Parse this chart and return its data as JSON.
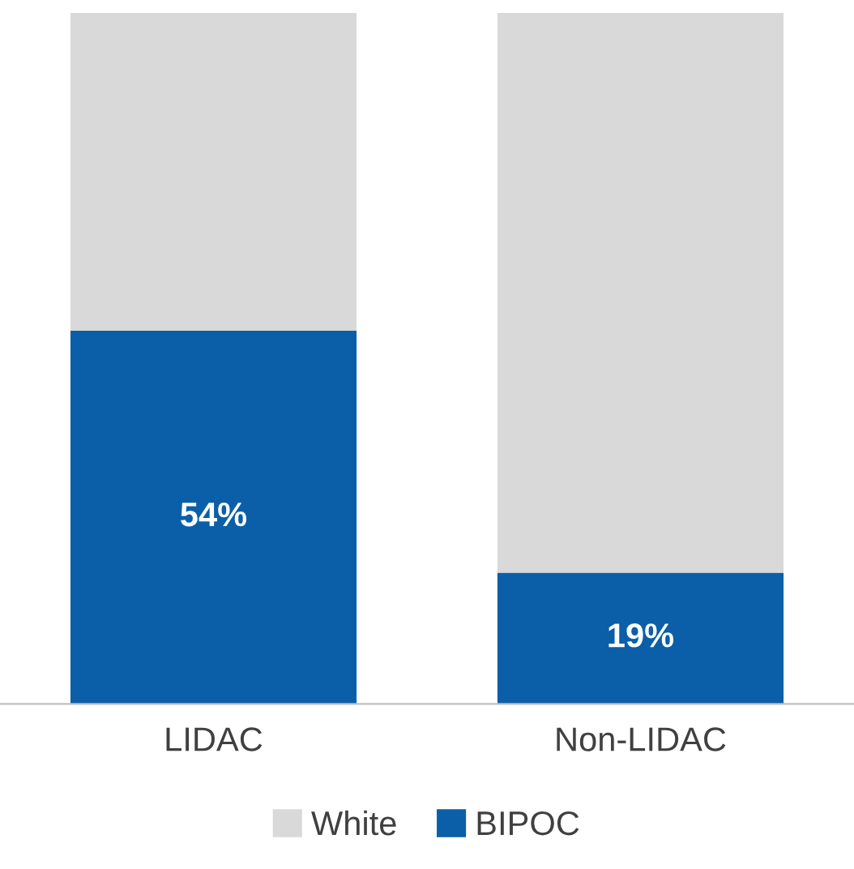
{
  "chart_data": {
    "type": "bar",
    "stacked": true,
    "categories": [
      "LIDAC",
      "Non-LIDAC"
    ],
    "series": [
      {
        "name": "BIPOC",
        "color": "#0b5fa8",
        "values": [
          54,
          19
        ],
        "value_labels": [
          "54%",
          "19%"
        ]
      },
      {
        "name": "White",
        "color": "#d9d9d9",
        "values": [
          46,
          81
        ]
      }
    ],
    "ylim": [
      0,
      100
    ],
    "tick_labels": "x",
    "legend": "bottom",
    "grid": false
  }
}
